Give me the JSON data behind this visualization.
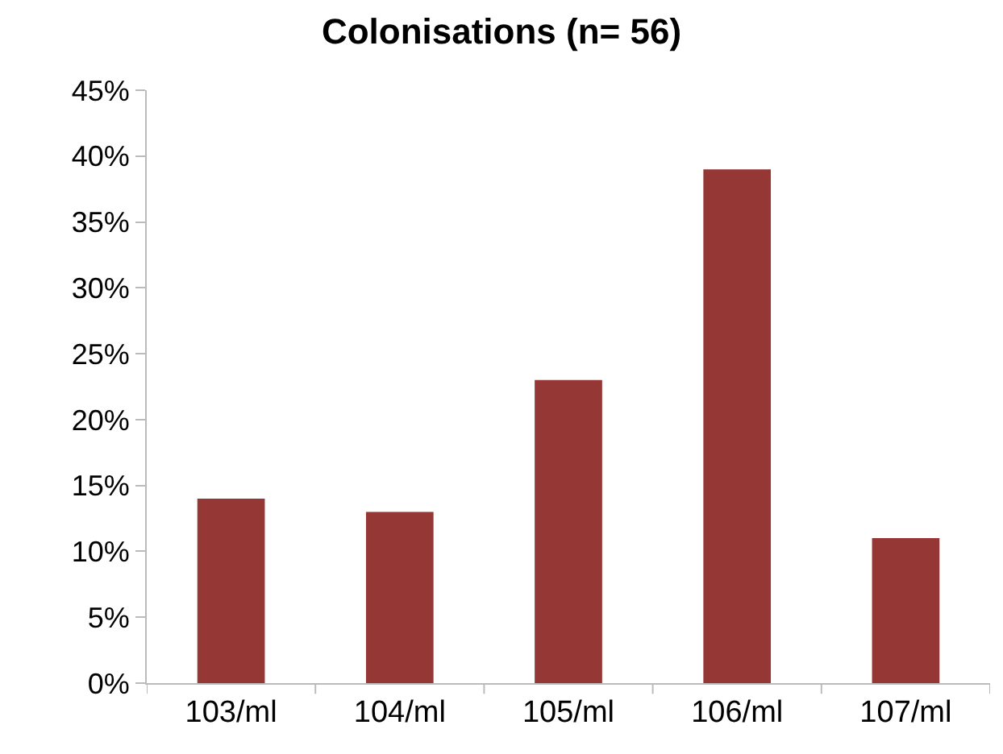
{
  "chart_data": {
    "type": "bar",
    "title": "Colonisations (n= 56)",
    "categories": [
      "103/ml",
      "104/ml",
      "105/ml",
      "106/ml",
      "107/ml"
    ],
    "values": [
      14,
      13,
      23,
      39,
      11
    ],
    "color": "#953735",
    "ylim": [
      0,
      45
    ],
    "yticks": [
      {
        "value": 0,
        "label": "0%"
      },
      {
        "value": 5,
        "label": "5%"
      },
      {
        "value": 10,
        "label": "10%"
      },
      {
        "value": 15,
        "label": "15%"
      },
      {
        "value": 20,
        "label": "20%"
      },
      {
        "value": 25,
        "label": "25%"
      },
      {
        "value": 30,
        "label": "30%"
      },
      {
        "value": 35,
        "label": "35%"
      },
      {
        "value": 40,
        "label": "40%"
      },
      {
        "value": 45,
        "label": "45%"
      }
    ],
    "grid": false,
    "legend": false
  }
}
